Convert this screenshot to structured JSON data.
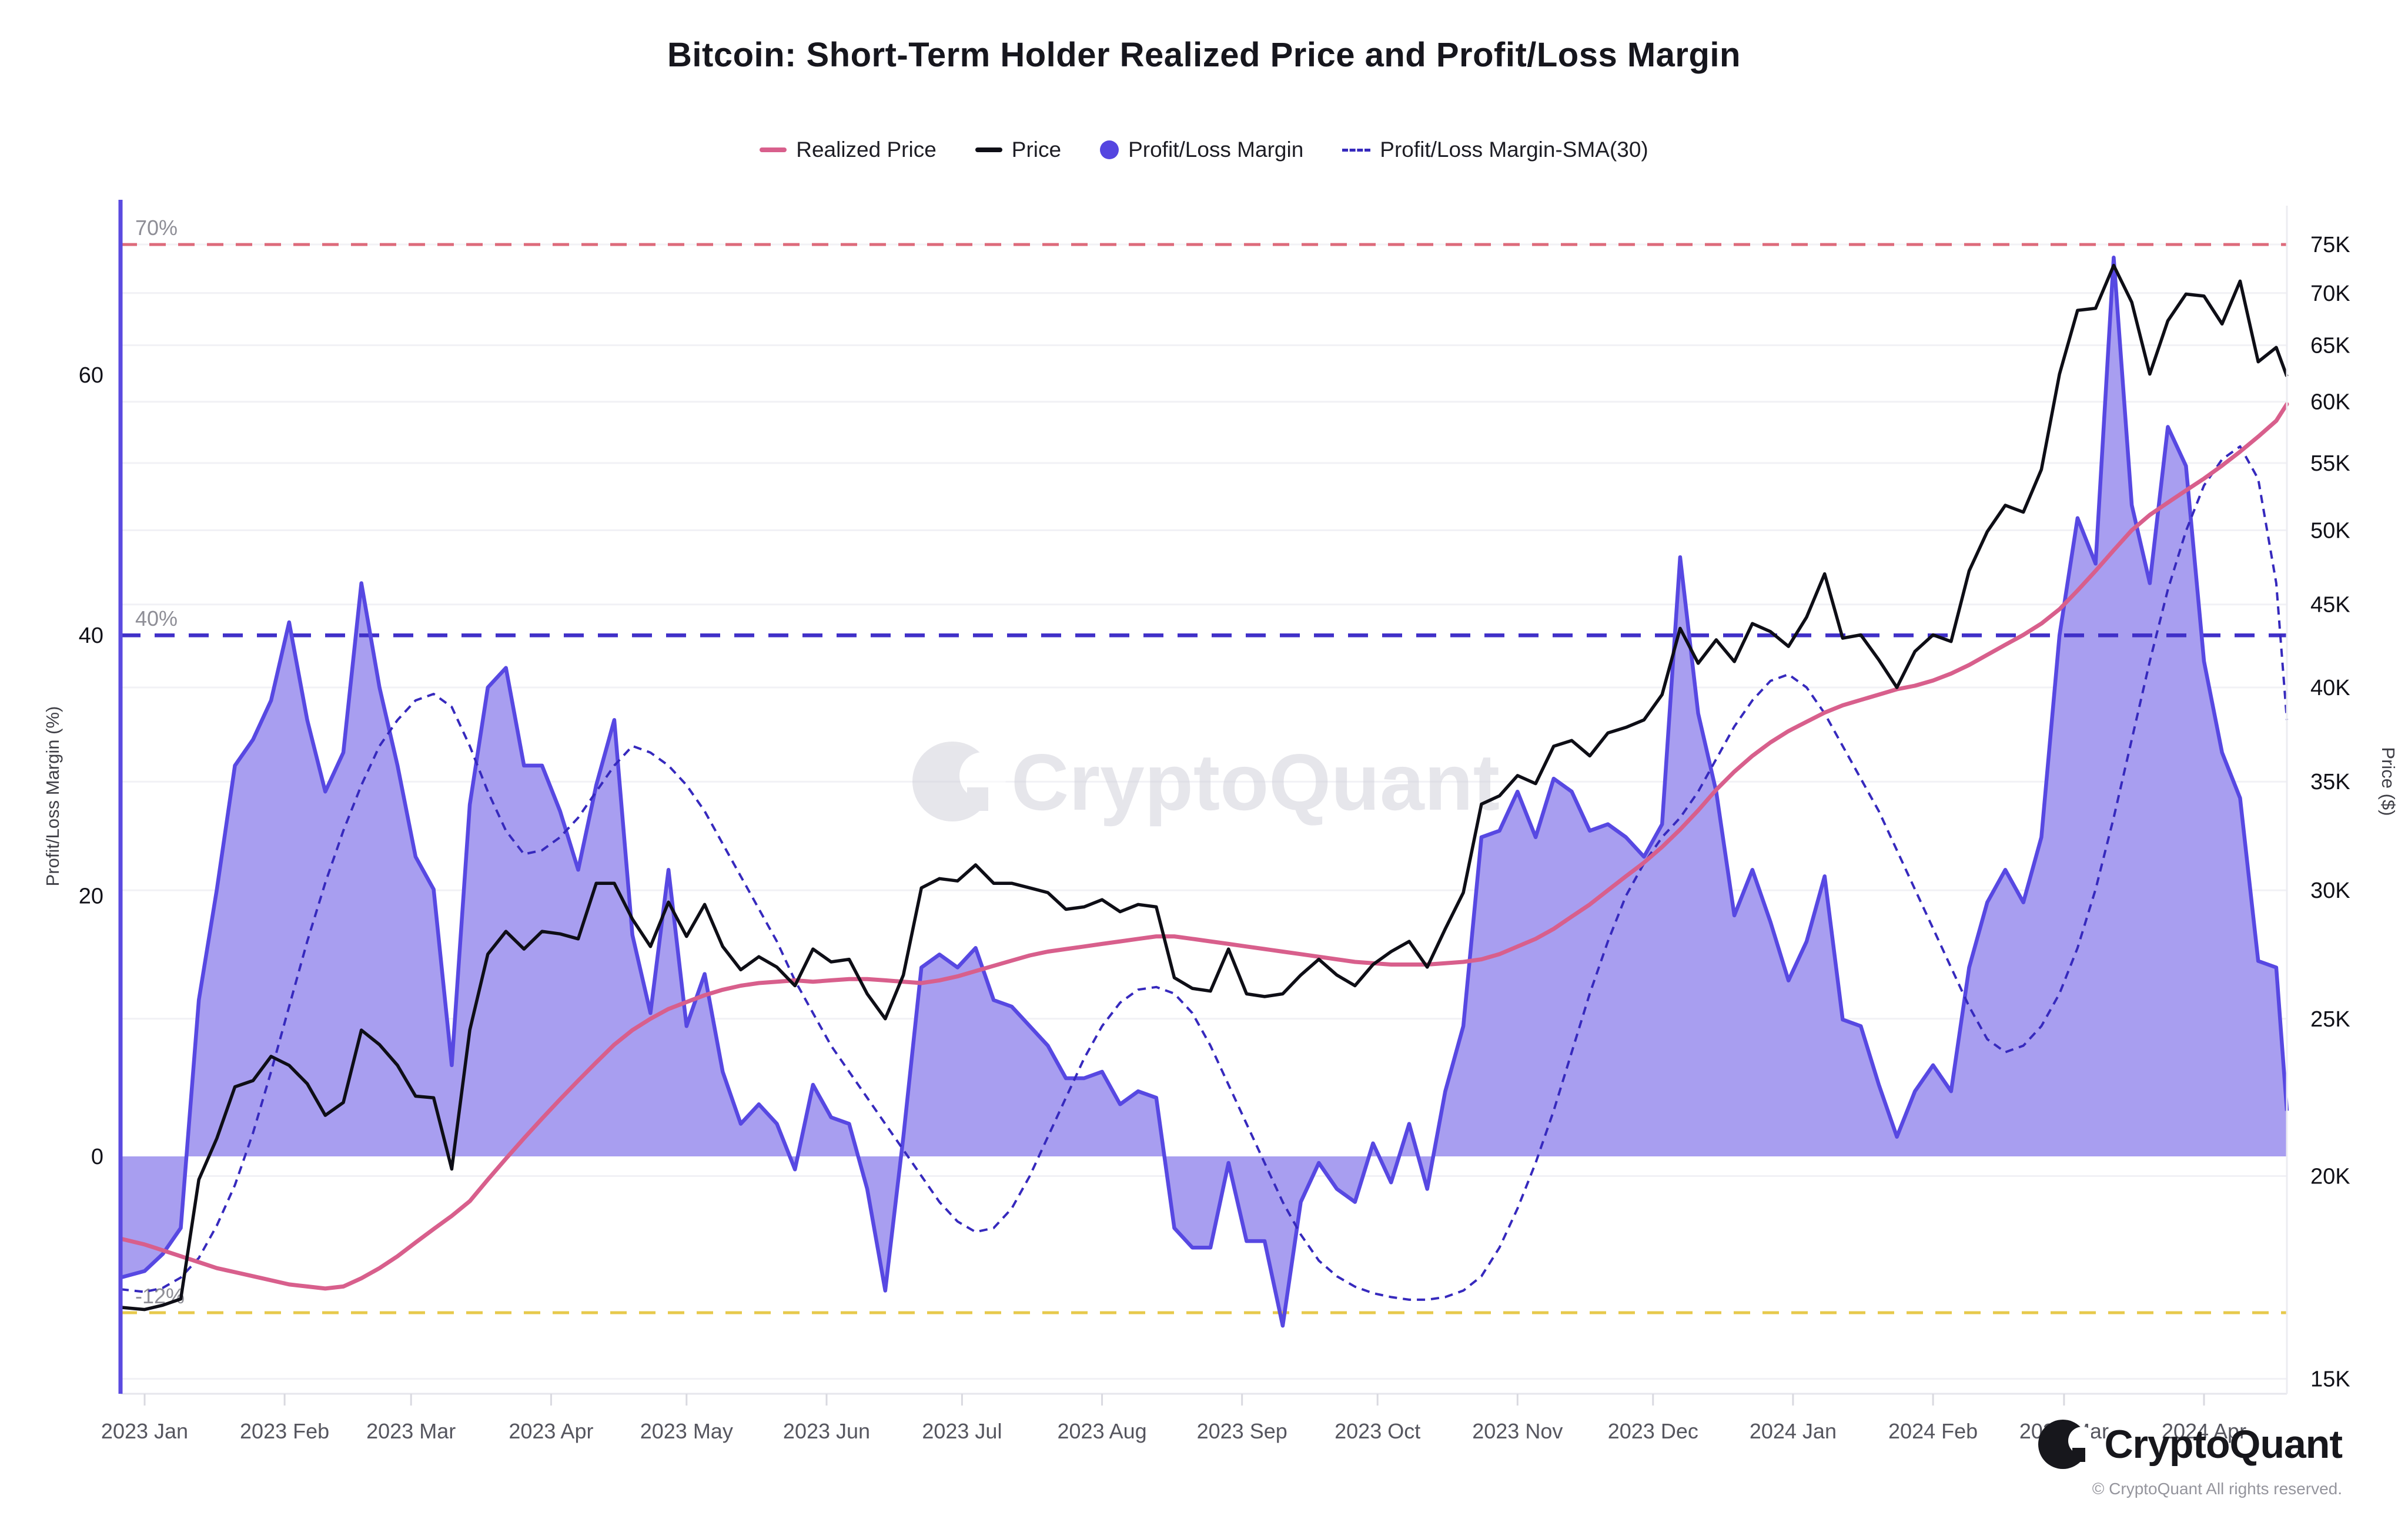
{
  "title": "Bitcoin: Short-Term Holder Realized Price and Profit/Loss Margin",
  "watermark": "CryptoQuant",
  "footer": {
    "brand": "CryptoQuant",
    "copyright": "© CryptoQuant All rights reserved."
  },
  "legend": [
    {
      "label": "Realized Price",
      "type": "line",
      "color": "#d85f8c"
    },
    {
      "label": "Price",
      "type": "line",
      "color": "#0e0e16"
    },
    {
      "label": "Profit/Loss Margin",
      "type": "dot",
      "color": "#5546e0"
    },
    {
      "label": "Profit/Loss Margin-SMA(30)",
      "type": "dashed",
      "color": "#3629bd"
    }
  ],
  "axes": {
    "left": {
      "title": "Profit/Loss Margin (%)",
      "ticks": [
        60,
        40,
        20,
        0
      ]
    },
    "right": {
      "title": "Price ($)",
      "ticks_k": [
        75,
        70,
        65,
        60,
        55,
        50,
        45,
        40,
        35,
        30,
        25,
        20,
        15
      ]
    },
    "x": {
      "ticks": [
        {
          "label": "2023 Jan",
          "day": 0
        },
        {
          "label": "2023 Feb",
          "day": 31
        },
        {
          "label": "2023 Mar",
          "day": 59
        },
        {
          "label": "2023 Apr",
          "day": 90
        },
        {
          "label": "2023 May",
          "day": 120
        },
        {
          "label": "2023 Jun",
          "day": 151
        },
        {
          "label": "2023 Jul",
          "day": 181
        },
        {
          "label": "2023 Aug",
          "day": 212
        },
        {
          "label": "2023 Sep",
          "day": 243
        },
        {
          "label": "2023 Oct",
          "day": 273
        },
        {
          "label": "2023 Nov",
          "day": 304
        },
        {
          "label": "2023 Dec",
          "day": 334
        },
        {
          "label": "2024 Jan",
          "day": 365
        },
        {
          "label": "2024 Feb",
          "day": 396
        },
        {
          "label": "2024 Mar",
          "day": 425
        },
        {
          "label": "2024 Apr",
          "day": 456
        }
      ]
    }
  },
  "reference_lines": [
    {
      "label": "70%",
      "value": 70,
      "color": "#dd6b7b"
    },
    {
      "label": "40%",
      "value": 40,
      "color": "#4030c8"
    },
    {
      "label": "-12%",
      "value": -12,
      "color": "#e7c94c"
    }
  ],
  "chart_data": {
    "type": "area",
    "subtype": "mixed line+area, dual axis (left: percent linear, right: USD log)",
    "x_start_days_from_2023jan1": -4,
    "x_step_days": 4,
    "margin_axis": {
      "min": -18,
      "max": 73,
      "grid": false
    },
    "price_axis": {
      "scale": "log",
      "min_k": 14.8,
      "max_k": 77,
      "grid": true
    },
    "legend_position": "top-center",
    "series": [
      {
        "name": "Profit/Loss Margin",
        "axis": "margin",
        "style": "area",
        "fill": "#a89ef0",
        "stroke": "#5748e2",
        "values": [
          -9.3,
          -8.8,
          -7.5,
          -5.5,
          12,
          20.5,
          30,
          32,
          35,
          41,
          33.5,
          28,
          31,
          44,
          36,
          30,
          23,
          20.5,
          7,
          27,
          36,
          37.5,
          30,
          30,
          26.5,
          22,
          28.5,
          33.5,
          17,
          11,
          22,
          10,
          14,
          6.5,
          2.5,
          4,
          2.5,
          -1,
          5.5,
          3,
          2.5,
          -2.5,
          -10.3,
          1.5,
          14.5,
          15.5,
          14.5,
          16,
          12,
          11.5,
          10,
          8.5,
          6,
          6,
          6.5,
          4,
          5,
          4.5,
          -5.5,
          -7,
          -7,
          -0.5,
          -6.5,
          -6.5,
          -13,
          -3.5,
          -0.5,
          -2.5,
          -3.5,
          1,
          -2,
          2.5,
          -2.5,
          5,
          10,
          24.5,
          25,
          28,
          24.5,
          29,
          28,
          25,
          25.5,
          24.5,
          23,
          25.5,
          46,
          34,
          28,
          18.5,
          22,
          18,
          13.5,
          16.5,
          21.5,
          10.5,
          10,
          5.5,
          1.5,
          5,
          7,
          5,
          14.5,
          19.5,
          22,
          19.5,
          24.5,
          40,
          49,
          45.5,
          69,
          50,
          44,
          56,
          53,
          38,
          31,
          27.5,
          15,
          14.5,
          3.5
        ]
      },
      {
        "name": "Profit/Loss Margin-SMA(30)",
        "axis": "margin",
        "style": "dashed",
        "stroke": "#3629bd",
        "values": [
          -10.2,
          -10.4,
          -10.1,
          -9.3,
          -7.8,
          -5.3,
          -2.2,
          1.8,
          6.5,
          11.5,
          16.5,
          21,
          25,
          28.5,
          31.5,
          33.5,
          35,
          35.5,
          34.5,
          31.5,
          28,
          25,
          23.2,
          23.5,
          24.5,
          26,
          28,
          30,
          31.5,
          31,
          30,
          28.5,
          26.5,
          24,
          21.5,
          19,
          16.5,
          13.5,
          11,
          8.5,
          6.5,
          4.5,
          2.5,
          0.5,
          -1.5,
          -3.5,
          -5,
          -5.8,
          -5.5,
          -4,
          -1.5,
          1.5,
          4.5,
          7.5,
          10,
          11.8,
          12.8,
          13,
          12.5,
          11,
          8.5,
          5.5,
          2.5,
          -0.5,
          -3.5,
          -6,
          -8,
          -9.2,
          -10,
          -10.5,
          -10.8,
          -11,
          -11,
          -10.8,
          -10.3,
          -9.2,
          -7,
          -4,
          -0.5,
          3.5,
          8,
          12.5,
          16.5,
          20,
          22.5,
          24.5,
          26,
          28,
          30.5,
          33,
          35,
          36.5,
          37,
          36,
          34,
          31.5,
          29,
          26.5,
          23.5,
          20.5,
          17.5,
          14.5,
          11.5,
          9,
          8,
          8.5,
          10,
          12.5,
          16,
          20.5,
          26,
          32,
          38,
          43.5,
          48,
          51.5,
          53.5,
          54.5,
          52,
          44,
          33.5
        ]
      },
      {
        "name": "Price",
        "axis": "price",
        "style": "line",
        "stroke": "#0e0e16",
        "values_k": [
          16.6,
          16.55,
          16.65,
          16.8,
          19.9,
          21.1,
          22.7,
          22.9,
          23.7,
          23.4,
          22.8,
          21.8,
          22.2,
          24.6,
          24.1,
          23.4,
          22.4,
          22.35,
          20.2,
          24.6,
          27.4,
          28.3,
          27.6,
          28.3,
          28.2,
          28,
          30.3,
          30.3,
          28.8,
          27.7,
          29.5,
          28.1,
          29.4,
          27.7,
          26.8,
          27.3,
          26.9,
          26.2,
          27.6,
          27.1,
          27.2,
          25.9,
          25,
          26.6,
          30.1,
          30.5,
          30.4,
          31.1,
          30.3,
          30.3,
          30.1,
          29.9,
          29.2,
          29.3,
          29.6,
          29.1,
          29.4,
          29.3,
          26.5,
          26.1,
          26,
          27.6,
          25.9,
          25.8,
          25.9,
          26.6,
          27.2,
          26.6,
          26.2,
          27,
          27.5,
          27.9,
          26.9,
          28.4,
          29.9,
          33.9,
          34.3,
          35.3,
          34.9,
          36.8,
          37.1,
          36.3,
          37.5,
          37.8,
          38.2,
          39.6,
          43.5,
          41.4,
          42.8,
          41.5,
          43.8,
          43.3,
          42.4,
          44.2,
          47,
          42.9,
          43.1,
          41.6,
          40,
          42.1,
          43.1,
          42.7,
          47.2,
          49.9,
          51.8,
          51.3,
          54.5,
          62.4,
          68.3,
          68.5,
          72.8,
          69.1,
          62.4,
          67.3,
          69.9,
          69.7,
          67,
          71.2,
          63.5,
          64.8,
          62.2
        ]
      },
      {
        "name": "Realized Price",
        "axis": "price",
        "style": "line",
        "stroke": "#d85f8c",
        "values_k": [
          18.3,
          18.15,
          18,
          17.85,
          17.7,
          17.55,
          17.45,
          17.35,
          17.25,
          17.15,
          17.1,
          17.05,
          17.1,
          17.3,
          17.55,
          17.85,
          18.2,
          18.55,
          18.9,
          19.3,
          19.9,
          20.5,
          21.1,
          21.7,
          22.3,
          22.9,
          23.5,
          24.1,
          24.6,
          25,
          25.35,
          25.6,
          25.85,
          26.05,
          26.2,
          26.3,
          26.35,
          26.4,
          26.35,
          26.4,
          26.45,
          26.45,
          26.4,
          26.35,
          26.3,
          26.4,
          26.55,
          26.75,
          26.95,
          27.15,
          27.35,
          27.5,
          27.6,
          27.7,
          27.8,
          27.9,
          28,
          28.1,
          28.1,
          28,
          27.9,
          27.8,
          27.7,
          27.6,
          27.5,
          27.4,
          27.3,
          27.2,
          27.1,
          27.05,
          27,
          27,
          27,
          27.05,
          27.1,
          27.2,
          27.4,
          27.7,
          28,
          28.4,
          28.9,
          29.4,
          30,
          30.6,
          31.2,
          31.9,
          32.7,
          33.6,
          34.6,
          35.5,
          36.3,
          37,
          37.6,
          38.1,
          38.6,
          39,
          39.3,
          39.6,
          39.9,
          40.1,
          40.4,
          40.8,
          41.3,
          41.9,
          42.5,
          43.1,
          43.8,
          44.7,
          45.9,
          47.2,
          48.6,
          50,
          51.1,
          52,
          52.9,
          53.8,
          54.8,
          55.9,
          57.1,
          58.4,
          59.8
        ]
      }
    ]
  }
}
